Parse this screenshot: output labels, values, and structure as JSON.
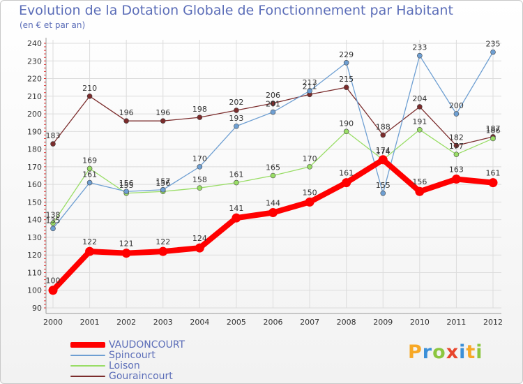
{
  "chart_data": {
    "type": "line",
    "title": "Evolution de la Dotation Globale de Fonctionnement par Habitant",
    "subtitle": "(en € et par an)",
    "xlabel": "",
    "ylabel": "",
    "categories": [
      "2000",
      "2001",
      "2002",
      "2003",
      "2004",
      "2005",
      "2006",
      "2007",
      "2008",
      "2009",
      "2010",
      "2011",
      "2012"
    ],
    "ylim": [
      90,
      240
    ],
    "yticks": [
      90,
      100,
      110,
      120,
      130,
      140,
      150,
      160,
      170,
      180,
      190,
      200,
      210,
      220,
      230,
      240
    ],
    "grid": true,
    "legend_position": "bottom-left",
    "series": [
      {
        "name": "VAUDONCOURT",
        "color": "#ff0000",
        "values": [
          100,
          122,
          121,
          122,
          124,
          141,
          144,
          150,
          161,
          174,
          156,
          163,
          161
        ]
      },
      {
        "name": "Spincourt",
        "color": "#6e9fd2",
        "values": [
          135,
          161,
          156,
          157,
          170,
          193,
          201,
          213,
          229,
          155,
          233,
          200,
          235
        ]
      },
      {
        "name": "Loison",
        "color": "#99dd66",
        "values": [
          138,
          169,
          155,
          156,
          158,
          161,
          165,
          170,
          190,
          174,
          191,
          177,
          186
        ]
      },
      {
        "name": "Gouraincourt",
        "color": "#7b2c2c",
        "values": [
          183,
          210,
          196,
          196,
          198,
          202,
          206,
          211,
          215,
          188,
          204,
          182,
          187
        ]
      }
    ]
  },
  "branding": {
    "logo_letters": [
      "P",
      "r",
      "o",
      "x",
      "i",
      "t",
      "i"
    ],
    "logo_colors": [
      "#f7a826",
      "#3b8fd8",
      "#8cc63f",
      "#e8452c",
      "#3b8fd8",
      "#f7a826",
      "#8cc63f"
    ]
  }
}
